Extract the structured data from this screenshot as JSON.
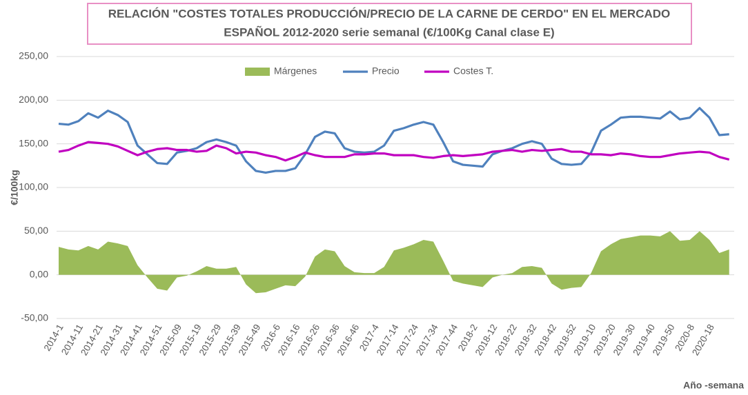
{
  "chart_data": {
    "type": "line",
    "title": [
      "RELACIÓN \"COSTES TOTALES PRODUCCIÓN/PRECIO DE LA CARNE DE CERDO\" EN EL MERCADO",
      "ESPAÑOL 2012-2020 serie semanal (€/100Kg Canal clase E)"
    ],
    "y_label": "€/100kg",
    "x_label": "Año -semana",
    "categories": [
      "2014-1",
      null,
      "2014-11",
      null,
      "2014-21",
      null,
      "2014-31",
      null,
      "2014-41",
      null,
      "2014-51",
      null,
      "2015-09",
      null,
      "2015-19",
      null,
      "2015-29",
      null,
      "2015-39",
      null,
      "2015-49",
      null,
      "2016-6",
      null,
      "2016-16",
      null,
      "2016-26",
      null,
      "2016-36",
      null,
      "2016-46",
      null,
      "2017-4",
      null,
      "2017-14",
      null,
      "2017-24",
      null,
      "2017-34",
      null,
      "2017-44",
      null,
      "2018-2",
      null,
      "2018-12",
      null,
      "2018-22",
      null,
      "2018-32",
      null,
      "2018-42",
      null,
      "2018-52",
      null,
      "2019-10",
      null,
      "2019-20",
      null,
      "2019-30",
      null,
      "2019-40",
      null,
      "2019-50",
      null,
      "2020-8",
      null,
      "2020-18",
      null,
      null
    ],
    "series": [
      {
        "name": "Márgenes",
        "kind": "area",
        "color": "#9bbb59",
        "values": [
          32,
          29,
          28,
          33,
          29,
          38,
          36,
          33,
          11,
          -3,
          -16,
          -18,
          -3,
          -1,
          4,
          10,
          7,
          7,
          9,
          -11,
          -21,
          -20,
          -16,
          -12,
          -13,
          -2,
          21,
          29,
          27,
          10,
          3,
          2,
          2,
          9,
          28,
          31,
          35,
          40,
          38,
          16,
          -7,
          -10,
          -12,
          -14,
          -3,
          0,
          2,
          9,
          10,
          8,
          -10,
          -17,
          -15,
          -14,
          2,
          27,
          35,
          41,
          43,
          45,
          45,
          44,
          50,
          39,
          40,
          50,
          40,
          25,
          29
        ]
      },
      {
        "name": "Precio",
        "kind": "line",
        "color": "#4f81bd",
        "values": [
          173,
          172,
          176,
          185,
          180,
          188,
          183,
          175,
          148,
          138,
          128,
          127,
          140,
          142,
          145,
          152,
          155,
          152,
          148,
          130,
          119,
          117,
          119,
          119,
          122,
          138,
          158,
          164,
          162,
          145,
          141,
          140,
          141,
          148,
          165,
          168,
          172,
          175,
          172,
          152,
          130,
          126,
          125,
          124,
          138,
          142,
          145,
          150,
          153,
          150,
          133,
          127,
          126,
          127,
          140,
          165,
          172,
          180,
          181,
          181,
          180,
          179,
          187,
          178,
          180,
          191,
          180,
          160,
          161
        ]
      },
      {
        "name": "Costes T.",
        "kind": "line",
        "color": "#c000c0",
        "values": [
          141,
          143,
          148,
          152,
          151,
          150,
          147,
          142,
          137,
          141,
          144,
          145,
          143,
          143,
          141,
          142,
          148,
          145,
          139,
          141,
          140,
          137,
          135,
          131,
          135,
          140,
          137,
          135,
          135,
          135,
          138,
          138,
          139,
          139,
          137,
          137,
          137,
          135,
          134,
          136,
          137,
          136,
          137,
          138,
          141,
          142,
          143,
          141,
          143,
          142,
          143,
          144,
          141,
          141,
          138,
          138,
          137,
          139,
          138,
          136,
          135,
          135,
          137,
          139,
          140,
          141,
          140,
          135,
          132
        ]
      }
    ],
    "ylim": [
      -50,
      250
    ],
    "yticks": [
      {
        "value": -50,
        "label": "-50,00"
      },
      {
        "value": 0,
        "label": "0,00"
      },
      {
        "value": 50,
        "label": "50,00"
      },
      {
        "value": 100,
        "label": "100,00"
      },
      {
        "value": 150,
        "label": "150,00"
      },
      {
        "value": 200,
        "label": "200,00"
      },
      {
        "value": 250,
        "label": "250,00"
      }
    ],
    "grid": true
  }
}
